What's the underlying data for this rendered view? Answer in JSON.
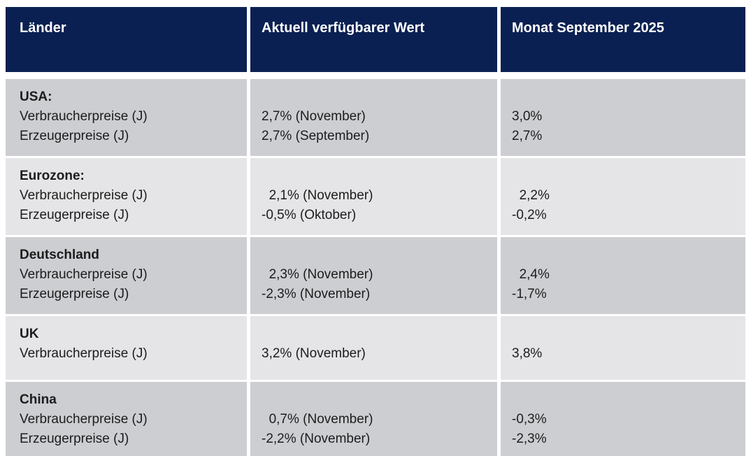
{
  "table": {
    "header": {
      "col1": "Länder",
      "col2": "Aktuell verfügbarer Wert",
      "col3": "Monat September 2025"
    },
    "rows": [
      {
        "country": "USA:",
        "labels": "Verbraucherpreise (J)\nErzeugerpreise (J)",
        "current": "2,7% (November)\n2,7% (September)",
        "month": "3,0%\n2,7%"
      },
      {
        "country": "Eurozone:",
        "labels": "Verbraucherpreise (J)\nErzeugerpreise (J)",
        "current": "  2,1% (November)\n-0,5% (Oktober)",
        "month": "  2,2%\n-0,2%"
      },
      {
        "country": "Deutschland",
        "labels": "Verbraucherpreise (J)\nErzeugerpreise (J)",
        "current": "  2,3% (November)\n-2,3% (November)",
        "month": "  2,4%\n-1,7%"
      },
      {
        "country": "UK",
        "labels": "Verbraucherpreise (J)",
        "current": "3,2% (November)",
        "month": "3,8%"
      },
      {
        "country": "China",
        "labels": "Verbraucherpreise (J)\nErzeugerpreise (J)",
        "current": "  0,7% (November)\n-2,2% (November)",
        "month": "-0,3%\n-2,3%"
      }
    ]
  },
  "colors": {
    "header_bg": "#0a2052",
    "header_text": "#ffffff",
    "row_dark": "#cdced2",
    "row_light": "#e5e5e7",
    "body_text": "#1c1c1c"
  },
  "chart_data": {
    "type": "table",
    "title": "",
    "columns": [
      "Länder",
      "Aktuell verfügbarer Wert",
      "Monat September 2025"
    ],
    "rows": [
      [
        "USA: Verbraucherpreise (J)",
        "2,7% (November)",
        "3,0%"
      ],
      [
        "USA: Erzeugerpreise (J)",
        "2,7% (September)",
        "2,7%"
      ],
      [
        "Eurozone: Verbraucherpreise (J)",
        "2,1% (November)",
        "2,2%"
      ],
      [
        "Eurozone: Erzeugerpreise (J)",
        "-0,5% (Oktober)",
        "-0,2%"
      ],
      [
        "Deutschland: Verbraucherpreise (J)",
        "2,3% (November)",
        "2,4%"
      ],
      [
        "Deutschland: Erzeugerpreise (J)",
        "-2,3% (November)",
        "-1,7%"
      ],
      [
        "UK: Verbraucherpreise (J)",
        "3,2% (November)",
        "3,8%"
      ],
      [
        "China: Verbraucherpreise (J)",
        "0,7% (November)",
        "-0,3%"
      ],
      [
        "China: Erzeugerpreise (J)",
        "-2,2% (November)",
        "-2,3%"
      ]
    ]
  }
}
